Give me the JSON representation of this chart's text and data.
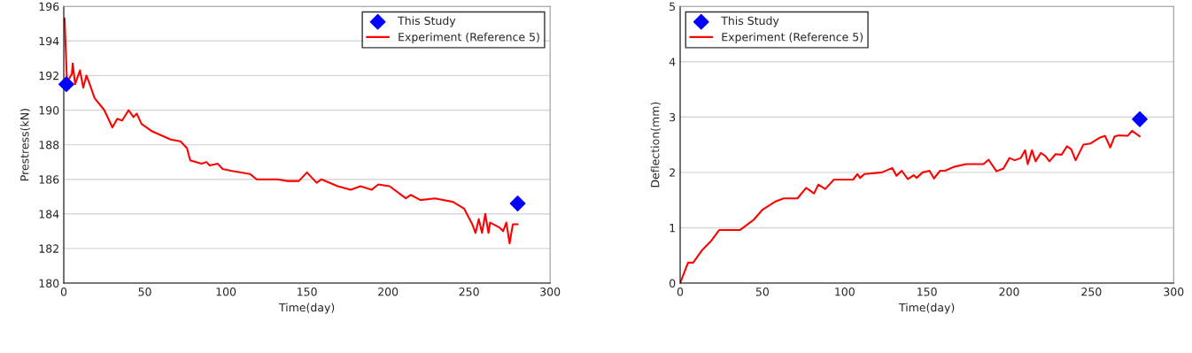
{
  "chart_data": [
    {
      "type": "line",
      "xlabel": "Time(day)",
      "ylabel": "Prestress(kN)",
      "xlim": [
        0,
        300
      ],
      "ylim": [
        180,
        196
      ],
      "xticks": [
        0,
        50,
        100,
        150,
        200,
        250,
        300
      ],
      "yticks": [
        180,
        182,
        184,
        186,
        188,
        190,
        192,
        194,
        196
      ],
      "grid": "y",
      "legend": "top right",
      "series": [
        {
          "name": "This Study",
          "type": "scatter",
          "marker": "diamond",
          "color": "#0000ff",
          "x": [
            1.6,
            280
          ],
          "values": [
            191.5,
            184.6
          ]
        },
        {
          "name": "Experiment (Reference 5)",
          "color": "#ff0000",
          "x": [
            0.5,
            2,
            5,
            5.5,
            7,
            10,
            12,
            14,
            16,
            19,
            25,
            30,
            33,
            36,
            40,
            43,
            45,
            48,
            54,
            66,
            72,
            76,
            78,
            85,
            88,
            90,
            95,
            98,
            103,
            115,
            119,
            132,
            138,
            145,
            150,
            156,
            159,
            169,
            177,
            183,
            190,
            194,
            201,
            211,
            214,
            220,
            229,
            240,
            247,
            252,
            254,
            256,
            258,
            260,
            262,
            263,
            269,
            271,
            273,
            275,
            277,
            280
          ],
          "values": [
            195.3,
            191.6,
            192.1,
            192.7,
            191.5,
            192.3,
            191.3,
            192.0,
            191.5,
            190.7,
            190.0,
            189.0,
            189.5,
            189.4,
            190.0,
            189.6,
            189.8,
            189.2,
            188.8,
            188.3,
            188.2,
            187.8,
            187.1,
            186.9,
            187.0,
            186.8,
            186.9,
            186.6,
            186.5,
            186.3,
            186.0,
            186.0,
            185.9,
            185.9,
            186.4,
            185.8,
            186.0,
            185.6,
            185.4,
            185.6,
            185.4,
            185.7,
            185.6,
            184.9,
            185.1,
            184.8,
            184.9,
            184.7,
            184.3,
            183.4,
            182.9,
            183.7,
            182.9,
            184.0,
            182.9,
            183.5,
            183.2,
            183.0,
            183.5,
            182.3,
            183.4,
            183.4
          ]
        }
      ]
    },
    {
      "type": "line",
      "xlabel": "Time(day)",
      "ylabel": "Deflection(mm)",
      "xlim": [
        0,
        300
      ],
      "ylim": [
        0,
        5
      ],
      "xticks": [
        0,
        50,
        100,
        150,
        200,
        250,
        300
      ],
      "yticks": [
        0,
        1,
        2,
        3,
        4,
        5
      ],
      "grid": "y",
      "legend": "top left",
      "series": [
        {
          "name": "This Study",
          "type": "scatter",
          "marker": "diamond",
          "color": "#0000ff",
          "x": [
            279.4
          ],
          "values": [
            2.96
          ]
        },
        {
          "name": "Experiment (Reference 5)",
          "color": "#ff0000",
          "x": [
            0,
            4.8,
            7.9,
            13.2,
            18.5,
            23.8,
            36.5,
            44.9,
            50.2,
            57.6,
            62.9,
            71.3,
            76.6,
            81.4,
            84,
            88.2,
            93.5,
            105.1,
            107.8,
            109.4,
            112,
            122.6,
            128.9,
            131.5,
            134.7,
            138.4,
            142.1,
            143.7,
            147.4,
            151.6,
            154.3,
            158,
            161.1,
            166.4,
            173.8,
            184.4,
            187.5,
            192.3,
            196.5,
            200.2,
            203.4,
            207.1,
            209.7,
            211.3,
            213.9,
            216.1,
            219.2,
            221.9,
            224.5,
            228.2,
            231.9,
            235.1,
            237.7,
            240.4,
            245.1,
            249.3,
            254.6,
            258.3,
            261.5,
            264.1,
            266.8,
            272,
            274.7,
            279.4
          ],
          "values": [
            0,
            0.37,
            0.37,
            0.59,
            0.75,
            0.96,
            0.96,
            1.15,
            1.33,
            1.47,
            1.53,
            1.53,
            1.72,
            1.62,
            1.78,
            1.7,
            1.87,
            1.87,
            1.97,
            1.9,
            1.97,
            2.0,
            2.08,
            1.94,
            2.03,
            1.88,
            1.95,
            1.9,
            2.0,
            2.03,
            1.89,
            2.03,
            2.03,
            2.1,
            2.15,
            2.15,
            2.23,
            2.02,
            2.07,
            2.26,
            2.22,
            2.26,
            2.4,
            2.15,
            2.4,
            2.2,
            2.35,
            2.3,
            2.2,
            2.33,
            2.32,
            2.47,
            2.42,
            2.22,
            2.5,
            2.52,
            2.62,
            2.66,
            2.45,
            2.65,
            2.67,
            2.66,
            2.75,
            2.65
          ]
        }
      ]
    }
  ]
}
